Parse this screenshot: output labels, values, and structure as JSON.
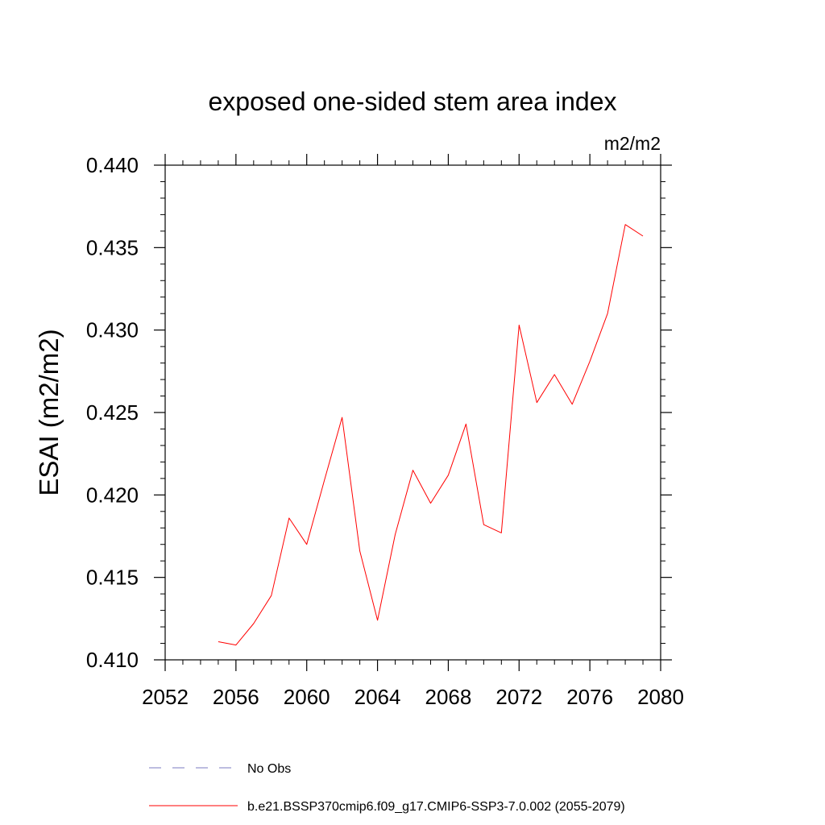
{
  "chart_data": {
    "type": "line",
    "title": "exposed one-sided stem area index",
    "units_label": "m2/m2",
    "ylabel": "ESAI  (m2/m2)",
    "xlabel": "",
    "xlim": [
      2052,
      2080
    ],
    "ylim": [
      0.41,
      0.44
    ],
    "x_ticks": [
      2052,
      2056,
      2060,
      2064,
      2068,
      2072,
      2076,
      2080
    ],
    "x_tick_labels": [
      "2052",
      "2056",
      "2060",
      "2064",
      "2068",
      "2072",
      "2076",
      "2080"
    ],
    "y_ticks": [
      0.41,
      0.415,
      0.42,
      0.425,
      0.43,
      0.435,
      0.44
    ],
    "y_tick_labels": [
      "0.410",
      "0.415",
      "0.420",
      "0.425",
      "0.430",
      "0.435",
      "0.440"
    ],
    "grid": false,
    "legend_position": "bottom",
    "series": [
      {
        "name": "b.e21.BSSP370cmip6.f09_g17.CMIP6-SSP3-7.0.002 (2055-2079)",
        "color": "#ff0000",
        "style": "solid",
        "x": [
          2055,
          2056,
          2057,
          2058,
          2059,
          2060,
          2061,
          2062,
          2063,
          2064,
          2065,
          2066,
          2067,
          2068,
          2069,
          2070,
          2071,
          2072,
          2073,
          2074,
          2075,
          2076,
          2077,
          2078,
          2079
        ],
        "y": [
          0.4111,
          0.4109,
          0.4122,
          0.4139,
          0.4186,
          0.417,
          0.4209,
          0.4247,
          0.4166,
          0.4124,
          0.4176,
          0.4215,
          0.4195,
          0.4212,
          0.4243,
          0.4182,
          0.4177,
          0.4303,
          0.4256,
          0.4273,
          0.4255,
          0.4281,
          0.431,
          0.4364,
          0.4357
        ]
      }
    ],
    "legend": [
      {
        "label": "No Obs",
        "color": "#7b7bc0",
        "style": "dashed"
      },
      {
        "label": "b.e21.BSSP370cmip6.f09_g17.CMIP6-SSP3-7.0.002 (2055-2079)",
        "color": "#ff0000",
        "style": "solid"
      }
    ]
  }
}
